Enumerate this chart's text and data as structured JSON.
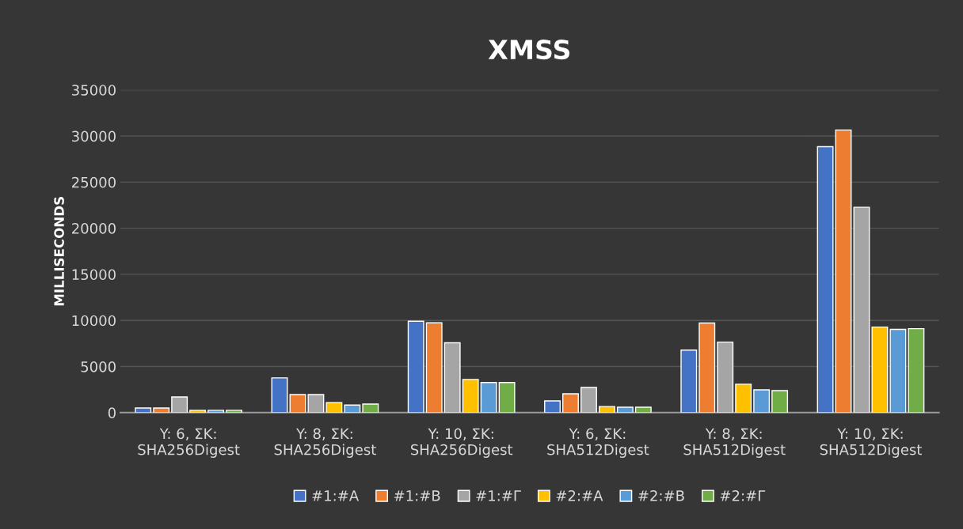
{
  "chart_data": {
    "type": "bar",
    "title": "XMSS",
    "ylabel": "MILLISECONDS",
    "categories": [
      "Y: 6, ΣK:\nSHA256Digest",
      "Y: 8, ΣK:\nSHA256Digest",
      "Y: 10, ΣK:\nSHA256Digest",
      "Y: 6, ΣK:\nSHA512Digest",
      "Y: 8, ΣK:\nSHA512Digest",
      "Y: 10, ΣK:\nSHA512Digest"
    ],
    "series": [
      {
        "name": "#1:#A",
        "color": "#4472c4",
        "values": [
          500,
          3770,
          9910,
          1270,
          6780,
          28850
        ]
      },
      {
        "name": "#1:#B",
        "color": "#ed7d31",
        "values": [
          500,
          1960,
          9740,
          2040,
          9720,
          30660
        ]
      },
      {
        "name": "#1:#Γ",
        "color": "#a5a5a5",
        "values": [
          1700,
          1960,
          7570,
          2730,
          7650,
          22270
        ]
      },
      {
        "name": "#2:#A",
        "color": "#ffc000",
        "values": [
          250,
          1080,
          3600,
          660,
          3080,
          9280
        ]
      },
      {
        "name": "#2:#B",
        "color": "#5b9bd5",
        "values": [
          250,
          820,
          3270,
          580,
          2470,
          9030
        ]
      },
      {
        "name": "#2:#Γ",
        "color": "#70ad47",
        "values": [
          250,
          930,
          3270,
          580,
          2390,
          9110
        ]
      }
    ],
    "ylim": [
      0,
      35000
    ],
    "yticks": [
      0,
      5000,
      10000,
      15000,
      20000,
      25000,
      30000,
      35000
    ],
    "grid": "y",
    "legend": "bottom"
  }
}
